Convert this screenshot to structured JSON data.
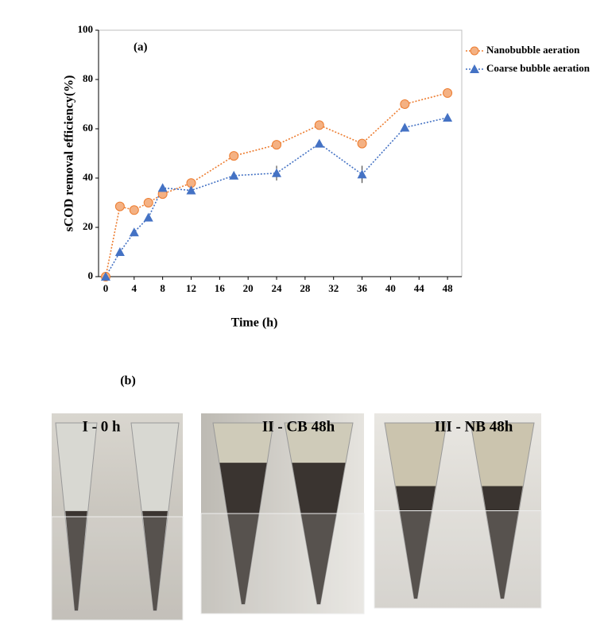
{
  "chart_data": {
    "type": "line",
    "annotation": "(a)",
    "x_label": "Time  (h)",
    "y_label": "sCOD removal  efficiency(%)",
    "x": [
      0,
      2,
      4,
      6,
      8,
      12,
      18,
      24,
      30,
      36,
      42,
      48
    ],
    "series": [
      {
        "name": "Nanobubble aeration",
        "color": "#ed7d31",
        "fill": "#f4b183",
        "marker": "circle",
        "values": [
          0,
          28.5,
          27,
          30,
          33.5,
          38,
          49,
          53.5,
          61.5,
          54,
          70,
          74.5
        ],
        "errors": [
          0,
          1,
          1,
          1,
          1,
          1,
          1,
          1.5,
          1,
          1,
          1,
          1.5
        ]
      },
      {
        "name": "Coarse bubble aeration",
        "color": "#4472c4",
        "fill": "#4472c4",
        "marker": "triangle",
        "values": [
          0,
          10,
          18,
          24,
          36,
          35,
          41,
          42,
          54,
          41.5,
          60.5,
          64.5
        ],
        "errors": [
          0,
          1,
          1,
          1,
          1,
          1,
          1,
          3,
          1,
          3.5,
          1,
          1
        ]
      }
    ],
    "xlim": [
      -1,
      50
    ],
    "ylim": [
      0,
      100
    ],
    "xticks": [
      0,
      4,
      8,
      12,
      16,
      20,
      24,
      28,
      32,
      36,
      40,
      44,
      48
    ],
    "yticks": [
      0,
      20,
      40,
      60,
      80,
      100
    ],
    "legend": "upper right"
  },
  "panel_b": {
    "label": "(b)",
    "photos": [
      "I - 0 h",
      "II - CB 48h",
      "III - NB 48h"
    ]
  }
}
